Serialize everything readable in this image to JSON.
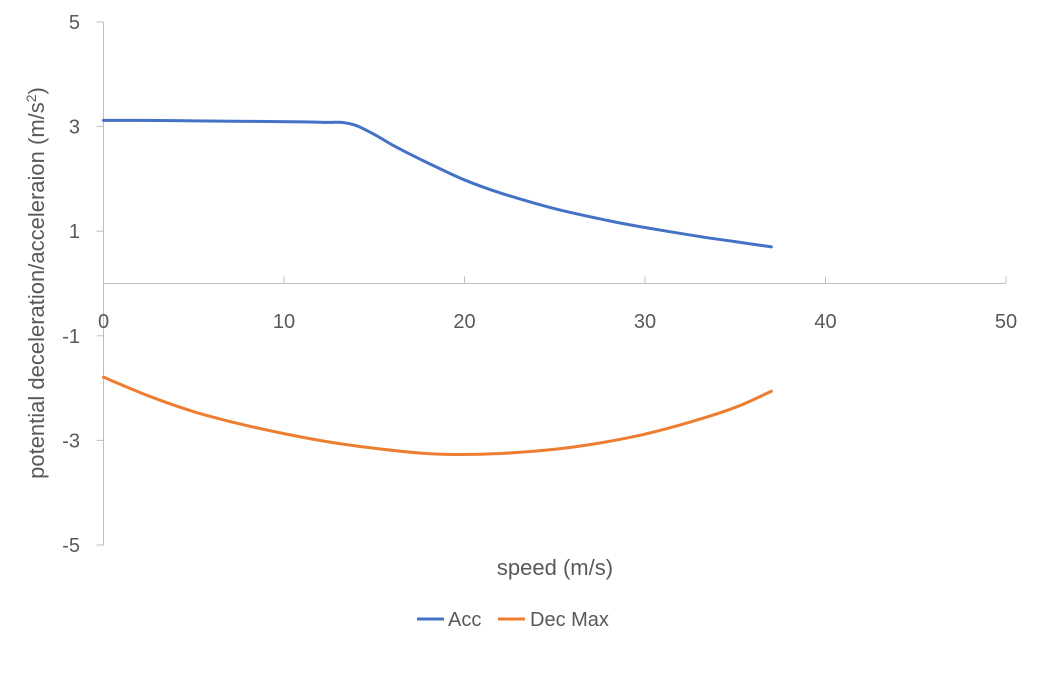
{
  "chart_data": {
    "type": "line",
    "title": "",
    "xlabel": "speed  (m/s)",
    "ylabel": {
      "main": "potential deceleration/acceleraion  (m/s",
      "sup": "2",
      "end": ")"
    },
    "xlim": [
      0,
      50
    ],
    "ylim": [
      -5,
      5
    ],
    "xticks": [
      0,
      10,
      20,
      30,
      40,
      50
    ],
    "yticks": [
      5,
      3,
      1,
      -1,
      -3,
      -5
    ],
    "grid": false,
    "legend": "bottom",
    "series": [
      {
        "name": "Acc",
        "color": "#4472C4",
        "x": [
          0,
          2,
          5,
          8,
          11,
          12.5,
          13.2,
          14,
          15,
          16,
          17,
          18,
          20,
          22,
          25,
          28,
          30,
          33,
          35,
          37
        ],
        "y": [
          3.12,
          3.12,
          3.11,
          3.1,
          3.09,
          3.08,
          3.08,
          3.02,
          2.85,
          2.65,
          2.47,
          2.3,
          1.98,
          1.73,
          1.43,
          1.2,
          1.07,
          0.9,
          0.8,
          0.7
        ]
      },
      {
        "name": "Dec Max",
        "color": "#ED7D31",
        "x": [
          0,
          2.5,
          5,
          7.5,
          10,
          12.5,
          15,
          17.5,
          19.5,
          22,
          25,
          27.5,
          30,
          32.5,
          35,
          37
        ],
        "y": [
          -1.79,
          -2.15,
          -2.45,
          -2.68,
          -2.87,
          -3.03,
          -3.15,
          -3.24,
          -3.27,
          -3.25,
          -3.17,
          -3.05,
          -2.88,
          -2.65,
          -2.37,
          -2.06
        ]
      }
    ]
  }
}
